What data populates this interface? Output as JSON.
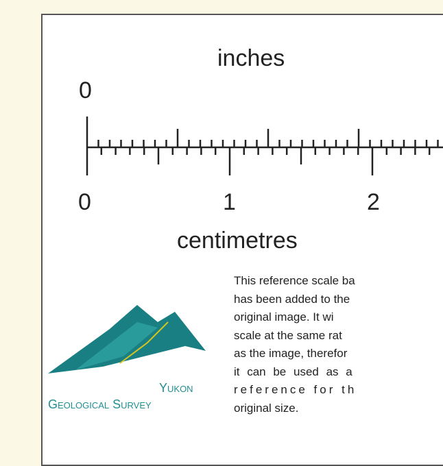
{
  "scale": {
    "top_label": "inches",
    "top_zero": "0",
    "bottom_ticks": [
      "0",
      "1",
      "2"
    ],
    "bottom_label": "centimetres"
  },
  "note": {
    "lines": [
      "This reference scale ba",
      "has been added to the",
      "original image. It wi",
      "scale at the same rat",
      "as the image, therefor",
      "it can be used as a",
      "reference for th",
      "original size."
    ]
  },
  "logo": {
    "line1": "Yukon",
    "line2": "Geological Survey"
  }
}
